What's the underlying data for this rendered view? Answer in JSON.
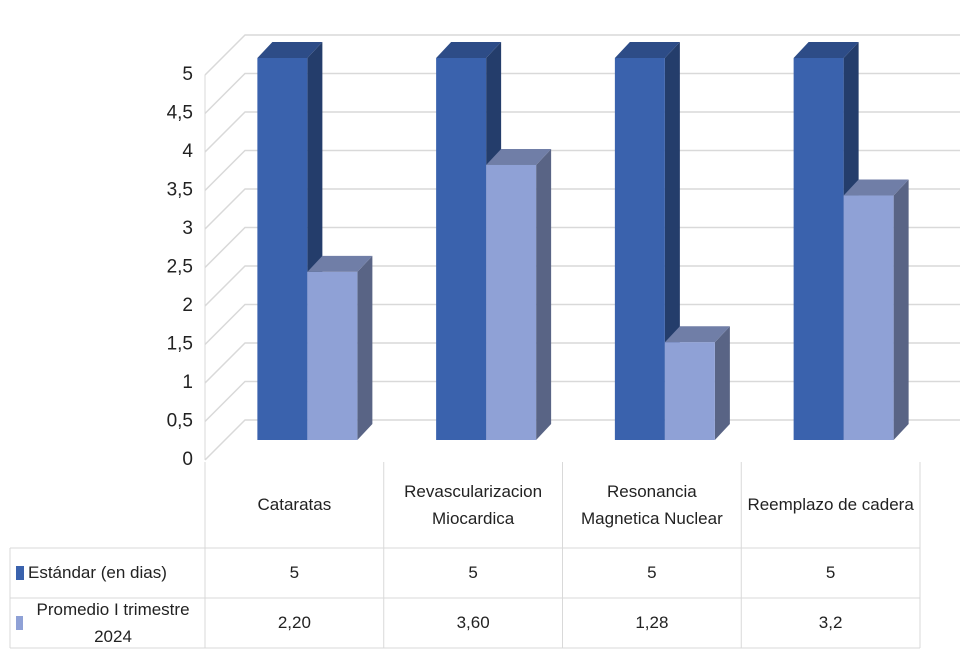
{
  "chart_data": {
    "type": "bar3d",
    "categories": [
      "Cataratas",
      "Revascularizacion Miocardica",
      "Resonancia Magnetica Nuclear",
      "Reemplazo de cadera"
    ],
    "series": [
      {
        "name": "Estándar (en dias)",
        "color": "#3a62ad",
        "values": [
          5,
          5,
          5,
          5
        ]
      },
      {
        "name": "Promedio I trimestre 2024",
        "color": "#8fa1d6",
        "values": [
          2.2,
          3.6,
          1.28,
          3.2
        ],
        "value_labels": [
          "2,20",
          "3,60",
          "1,28",
          "3,2"
        ]
      }
    ],
    "ylim": [
      0,
      5
    ],
    "yticks": [
      0,
      {
        "value": 0.5,
        "label": "0,5"
      },
      1,
      {
        "value": 1.5,
        "label": "1,5"
      },
      2,
      {
        "value": 2.5,
        "label": "2,5"
      },
      3,
      {
        "value": 3.5,
        "label": "3,5"
      },
      4,
      {
        "value": 4.5,
        "label": "4,5"
      },
      5
    ],
    "grid": true,
    "data_table": true
  }
}
